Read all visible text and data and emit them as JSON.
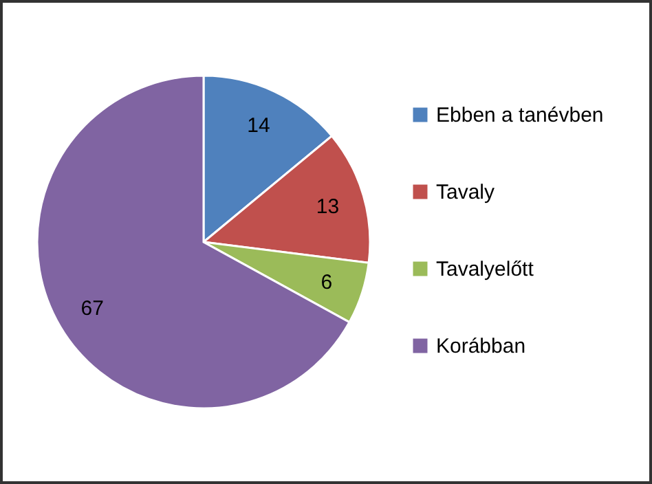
{
  "chart_data": {
    "type": "pie",
    "categories": [
      "Ebben a tanévben",
      "Tavaly",
      "Tavalyelőtt",
      "Korábban"
    ],
    "values": [
      14,
      13,
      6,
      67
    ],
    "colors": [
      "#4f81bd",
      "#c0504d",
      "#9bbb59",
      "#8064a2"
    ],
    "data_labels": true,
    "legend": "right"
  }
}
